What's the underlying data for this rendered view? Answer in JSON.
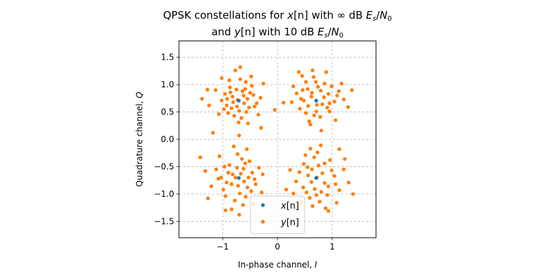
{
  "chart_data": {
    "type": "scatter",
    "title": {
      "line1": {
        "pre": "QPSK constellations for ",
        "var": "x",
        "idx": "[n]",
        "mid": " with ∞ dB ",
        "E": "E",
        "s": "s",
        "slash": "/",
        "N": "N",
        "zero": "0"
      },
      "line2": {
        "pre": "and ",
        "var": "y",
        "idx": "[n]",
        "mid": " with 10 dB ",
        "E": "E",
        "s": "s",
        "slash": "/",
        "N": "N",
        "zero": "0"
      }
    },
    "xlabel": {
      "text": "In-phase channel, ",
      "var": "I"
    },
    "ylabel": {
      "text": "Quadrature channel, ",
      "var": "Q"
    },
    "xlim": [
      -1.8,
      1.8
    ],
    "ylim": [
      -1.8,
      1.8
    ],
    "xticks": [
      -1,
      0,
      1
    ],
    "xtick_labels": [
      "−1",
      "0",
      "1"
    ],
    "yticks": [
      -1.5,
      -1.0,
      -0.5,
      0.0,
      0.5,
      1.0,
      1.5
    ],
    "ytick_labels": [
      "−1.5",
      "−1.0",
      "−0.5",
      "0.0",
      "0.5",
      "1.0",
      "1.5"
    ],
    "grid": true,
    "legend_position": "lower-center",
    "series": [
      {
        "name": "x[n]",
        "legend": {
          "var": "x",
          "idx": "[n]"
        },
        "color": "#1f77b4",
        "points": [
          [
            -0.707,
            0.707
          ],
          [
            0.707,
            0.707
          ],
          [
            -0.707,
            -0.707
          ],
          [
            0.707,
            -0.707
          ]
        ]
      },
      {
        "name": "y[n]",
        "legend": {
          "var": "y",
          "idx": "[n]"
        },
        "color": "#ff7f0e",
        "points": [
          [
            -0.82,
            0.78
          ],
          [
            -0.61,
            0.66
          ],
          [
            -0.75,
            0.91
          ],
          [
            -0.55,
            0.74
          ],
          [
            -0.93,
            0.62
          ],
          [
            -0.7,
            0.52
          ],
          [
            -0.44,
            0.81
          ],
          [
            -0.87,
            0.95
          ],
          [
            -0.64,
            0.88
          ],
          [
            -0.79,
            0.43
          ],
          [
            -0.52,
            0.58
          ],
          [
            -1.02,
            0.71
          ],
          [
            -0.68,
            1.1
          ],
          [
            -0.38,
            0.66
          ],
          [
            -0.9,
            0.48
          ],
          [
            -0.73,
            0.72
          ],
          [
            -0.59,
            0.92
          ],
          [
            -0.96,
            0.83
          ],
          [
            -0.47,
            0.98
          ],
          [
            -0.84,
            0.57
          ],
          [
            -0.66,
            0.39
          ],
          [
            -1.13,
            0.9
          ],
          [
            -0.31,
            0.76
          ],
          [
            -0.77,
            1.26
          ],
          [
            -0.71,
            0.31
          ],
          [
            -1.25,
            0.62
          ],
          [
            -0.35,
            0.45
          ],
          [
            -0.58,
            1.05
          ],
          [
            -1.07,
            0.46
          ],
          [
            -0.88,
            1.08
          ],
          [
            -0.48,
            1.15
          ],
          [
            -1.38,
            0.74
          ],
          [
            -0.26,
            1.02
          ],
          [
            -0.7,
            0.07
          ],
          [
            -0.54,
            0.29
          ],
          [
            -1.28,
            0.91
          ],
          [
            -0.3,
            0.21
          ],
          [
            -1.18,
            0.12
          ],
          [
            -0.68,
            1.32
          ],
          [
            -0.05,
            0.54
          ],
          [
            -1.02,
            1.12
          ],
          [
            -0.42,
            0.6
          ],
          [
            -0.81,
            0.68
          ],
          [
            -0.62,
            0.8
          ],
          [
            -0.98,
            0.55
          ],
          [
            -0.5,
            0.85
          ],
          [
            -0.74,
            0.6
          ],
          [
            -0.86,
            0.86
          ],
          [
            -0.57,
            0.5
          ],
          [
            -0.92,
            0.74
          ],
          [
            0.62,
            0.78
          ],
          [
            0.82,
            0.64
          ],
          [
            0.55,
            0.92
          ],
          [
            0.93,
            0.83
          ],
          [
            0.71,
            0.51
          ],
          [
            0.48,
            0.71
          ],
          [
            0.86,
            1.02
          ],
          [
            0.66,
            1.14
          ],
          [
            1.04,
            0.69
          ],
          [
            0.41,
            0.56
          ],
          [
            0.78,
            0.41
          ],
          [
            0.58,
            0.33
          ],
          [
            1.12,
            0.88
          ],
          [
            0.35,
            0.84
          ],
          [
            0.95,
            0.51
          ],
          [
            0.74,
            0.96
          ],
          [
            0.52,
            1.05
          ],
          [
            1.21,
            0.73
          ],
          [
            0.29,
            0.97
          ],
          [
            0.89,
            1.23
          ],
          [
            0.64,
            1.26
          ],
          [
            0.45,
            1.16
          ],
          [
            1.17,
            1.02
          ],
          [
            0.26,
            0.68
          ],
          [
            1.06,
            0.35
          ],
          [
            0.8,
            0.16
          ],
          [
            0.6,
            0.27
          ],
          [
            1.36,
            0.9
          ],
          [
            0.11,
            0.67
          ],
          [
            1.29,
            0.59
          ],
          [
            0.39,
            1.23
          ],
          [
            0.72,
            0.63
          ],
          [
            0.85,
            0.77
          ],
          [
            0.56,
            0.61
          ],
          [
            0.99,
            0.97
          ],
          [
            0.67,
            0.44
          ],
          [
            0.46,
            0.9
          ],
          [
            0.91,
            0.58
          ],
          [
            0.63,
            0.85
          ],
          [
            0.79,
            0.89
          ],
          [
            0.43,
            0.74
          ],
          [
            1.09,
            0.8
          ],
          [
            0.7,
            1.05
          ],
          [
            0.52,
            0.48
          ],
          [
            0.95,
            0.66
          ],
          [
            -0.82,
            -0.64
          ],
          [
            -0.61,
            -0.77
          ],
          [
            -0.74,
            -0.52
          ],
          [
            -0.55,
            -0.88
          ],
          [
            -0.93,
            -0.79
          ],
          [
            -0.69,
            -0.99
          ],
          [
            -0.46,
            -0.61
          ],
          [
            -0.88,
            -0.47
          ],
          [
            -0.65,
            -0.36
          ],
          [
            -1.03,
            -0.7
          ],
          [
            -0.4,
            -0.82
          ],
          [
            -0.78,
            -1.12
          ],
          [
            -0.58,
            -1.05
          ],
          [
            -1.12,
            -0.55
          ],
          [
            -0.34,
            -0.52
          ],
          [
            -0.95,
            -1.04
          ],
          [
            -0.73,
            -0.27
          ],
          [
            -0.51,
            -0.4
          ],
          [
            -1.21,
            -0.86
          ],
          [
            -0.29,
            -0.97
          ],
          [
            -0.84,
            -1.28
          ],
          [
            -0.63,
            -1.2
          ],
          [
            -1.32,
            -0.58
          ],
          [
            -0.44,
            -1.18
          ],
          [
            -1.06,
            -0.31
          ],
          [
            -0.8,
            -0.13
          ],
          [
            -0.56,
            -0.18
          ],
          [
            -1.27,
            -1.08
          ],
          [
            -0.27,
            -0.64
          ],
          [
            -0.7,
            -1.38
          ],
          [
            -0.95,
            -1.3
          ],
          [
            -1.41,
            -0.33
          ],
          [
            -0.62,
            -0.54
          ],
          [
            -0.84,
            -0.82
          ],
          [
            -0.53,
            -0.7
          ],
          [
            -0.99,
            -0.92
          ],
          [
            -0.67,
            -0.63
          ],
          [
            -0.48,
            -0.95
          ],
          [
            -0.9,
            -0.61
          ],
          [
            -0.72,
            -0.85
          ],
          [
            -0.59,
            -0.44
          ],
          [
            -1.08,
            -0.72
          ],
          [
            -0.77,
            -0.7
          ],
          [
            -0.42,
            -0.73
          ],
          [
            -0.97,
            -0.5
          ],
          [
            0.62,
            -0.78
          ],
          [
            0.82,
            -0.62
          ],
          [
            0.55,
            -0.51
          ],
          [
            0.93,
            -0.86
          ],
          [
            0.71,
            -1.02
          ],
          [
            0.47,
            -0.88
          ],
          [
            0.86,
            -0.44
          ],
          [
            0.67,
            -0.33
          ],
          [
            1.04,
            -0.67
          ],
          [
            0.4,
            -0.6
          ],
          [
            0.77,
            -1.14
          ],
          [
            0.59,
            -1.07
          ],
          [
            1.13,
            -0.93
          ],
          [
            0.34,
            -0.77
          ],
          [
            0.96,
            -0.38
          ],
          [
            0.73,
            -0.24
          ],
          [
            0.51,
            -0.29
          ],
          [
            1.21,
            -0.55
          ],
          [
            0.29,
            -0.99
          ],
          [
            0.88,
            -1.26
          ],
          [
            0.64,
            -1.22
          ],
          [
            0.43,
            -1.15
          ],
          [
            1.3,
            -0.79
          ],
          [
            0.23,
            -0.56
          ],
          [
            1.08,
            -1.16
          ],
          [
            0.79,
            -0.11
          ],
          [
            0.6,
            -0.17
          ],
          [
            1.38,
            -1.0
          ],
          [
            0.16,
            -0.92
          ],
          [
            1.13,
            -0.18
          ],
          [
            0.93,
            -1.31
          ],
          [
            0.36,
            -1.27
          ],
          [
            1.23,
            -0.36
          ],
          [
            0.72,
            -0.7
          ],
          [
            0.86,
            -0.8
          ],
          [
            0.56,
            -0.66
          ],
          [
            0.99,
            -0.57
          ],
          [
            0.68,
            -0.91
          ],
          [
            0.48,
            -0.45
          ],
          [
            0.91,
            -1.02
          ],
          [
            0.63,
            -0.55
          ],
          [
            0.8,
            -0.96
          ],
          [
            1.06,
            -0.82
          ],
          [
            0.53,
            -0.97
          ],
          [
            0.75,
            -0.48
          ]
        ]
      }
    ]
  }
}
